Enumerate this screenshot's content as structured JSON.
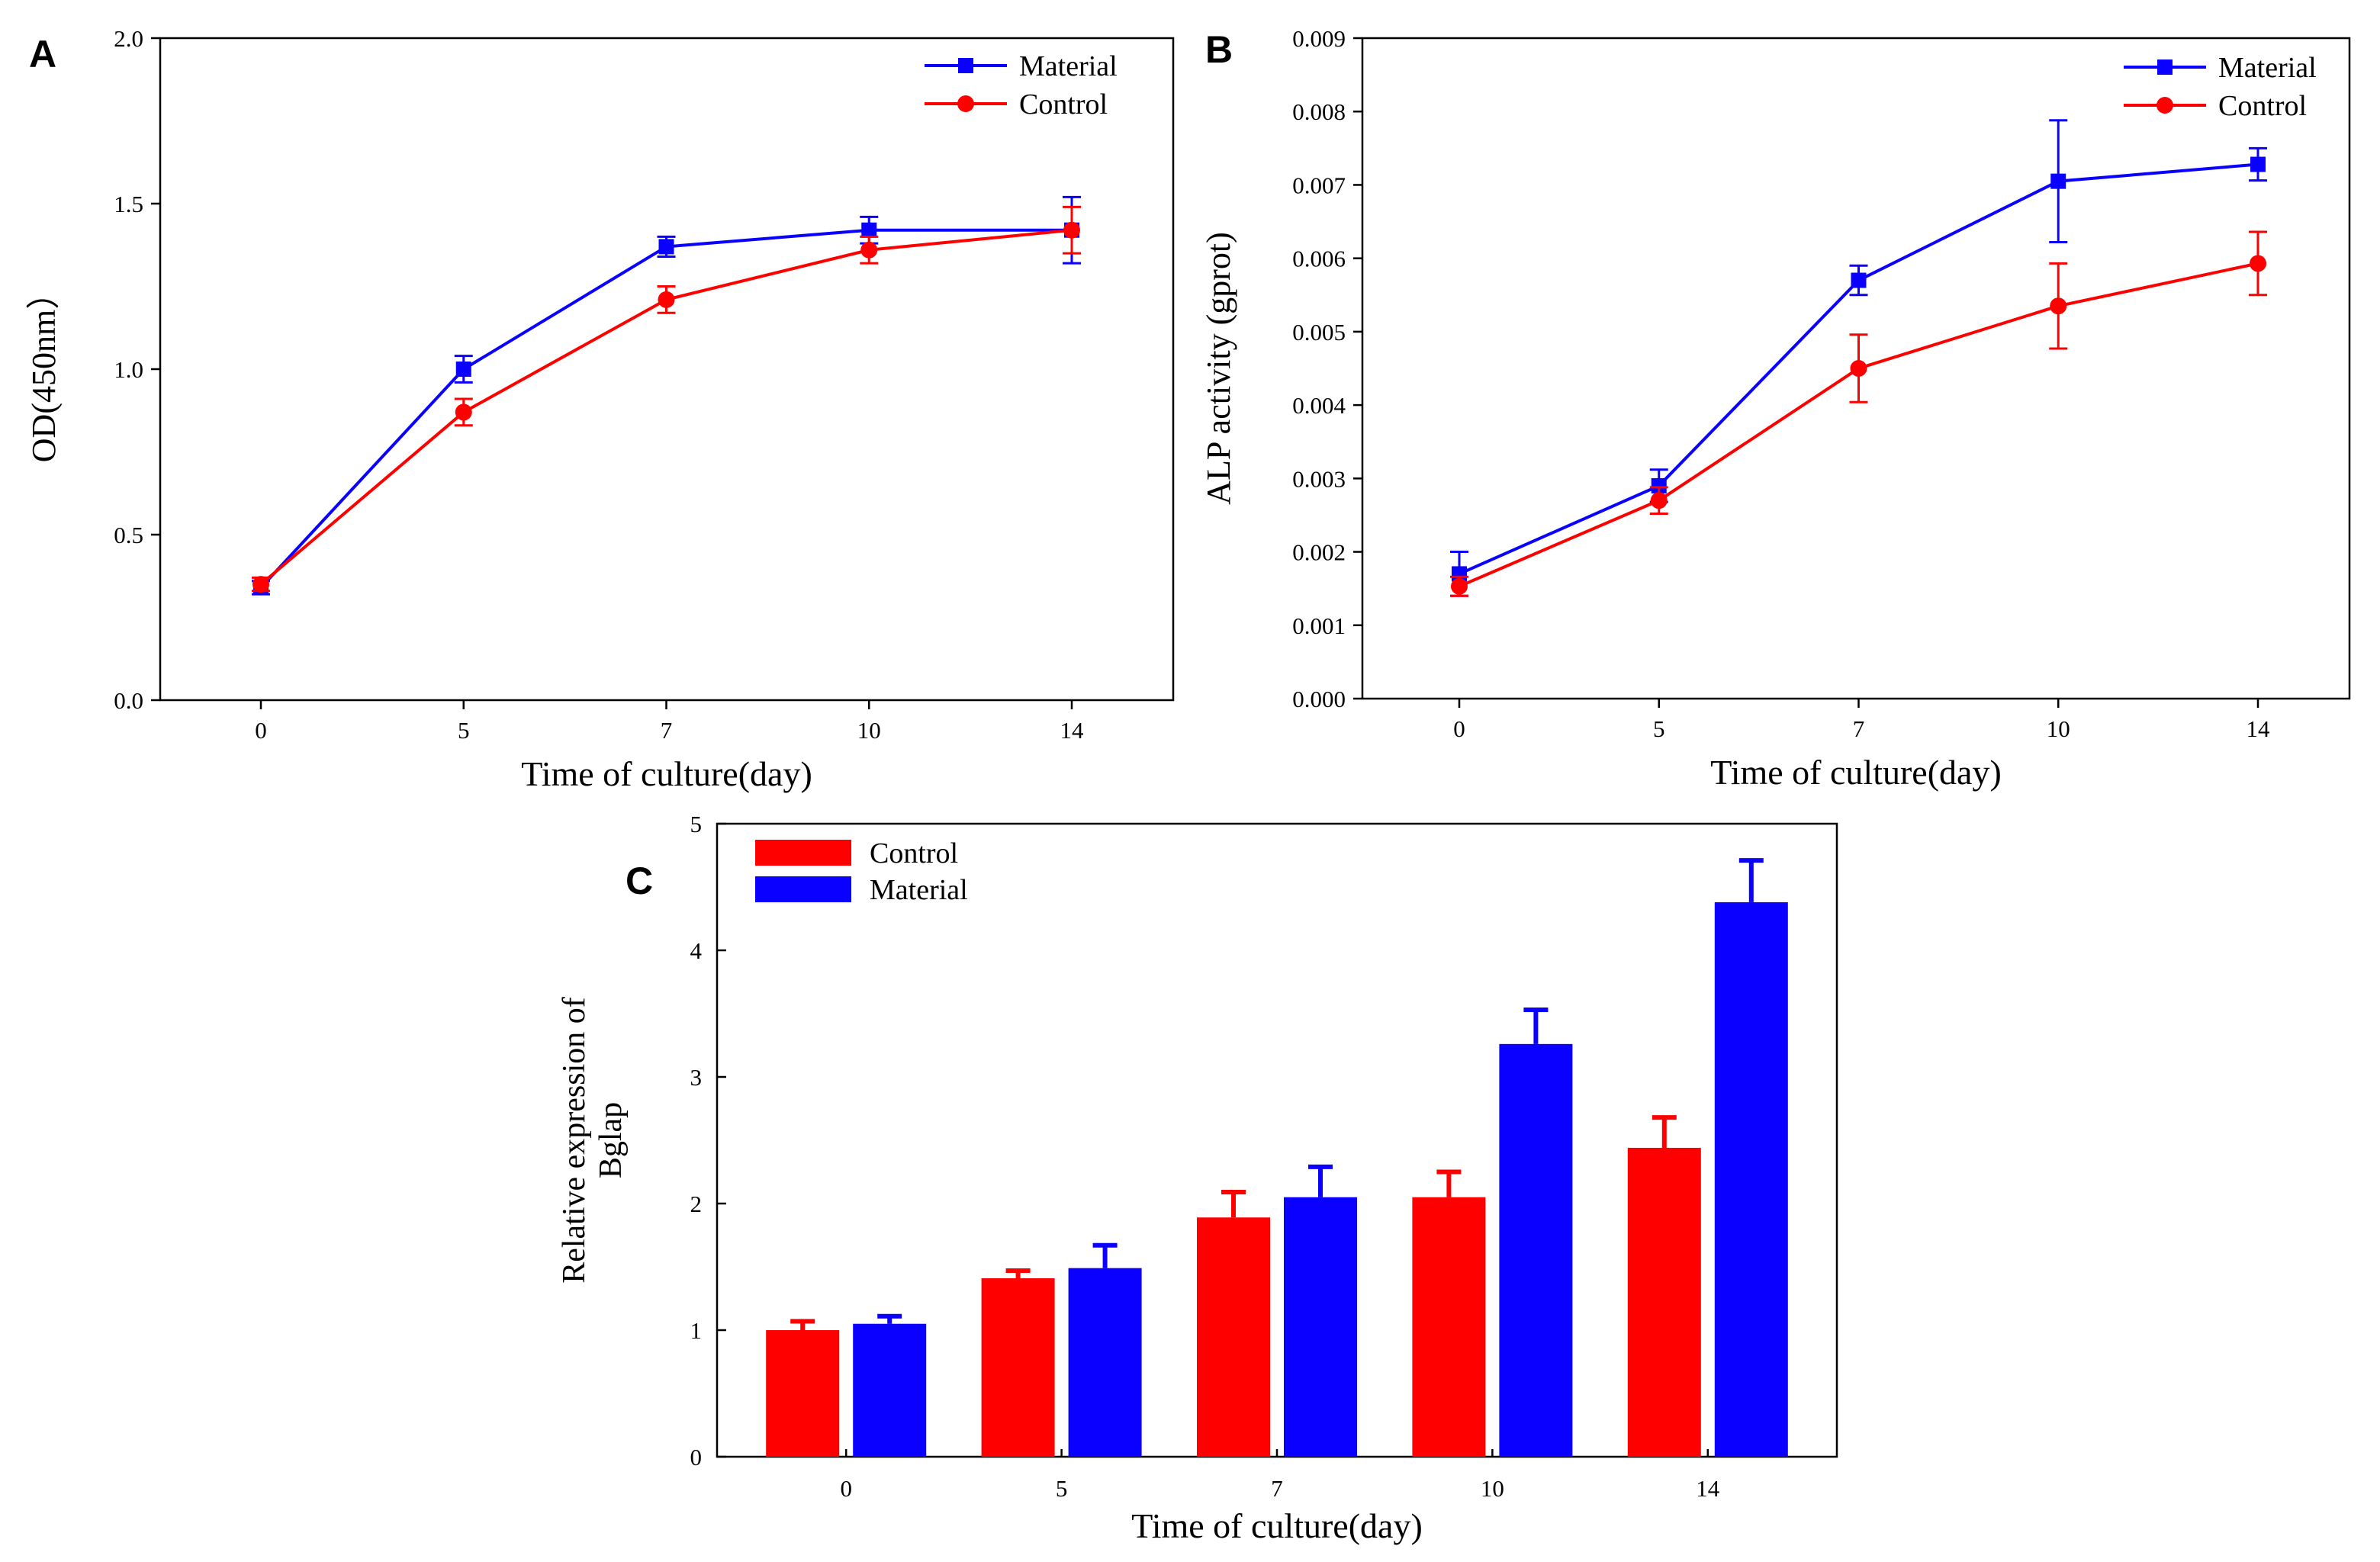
{
  "colors": {
    "material": "#0a00ff",
    "control": "#ff0000",
    "axis": "#000000"
  },
  "chart_data": [
    {
      "panel": "A",
      "type": "line",
      "xlabel": "Time of culture(day)",
      "ylabel": "OD(450nm）",
      "categories": [
        "0",
        "5",
        "7",
        "10",
        "14"
      ],
      "ylim": [
        0.0,
        2.0
      ],
      "yticks": [
        "0.0",
        "0.5",
        "1.0",
        "1.5",
        "2.0"
      ],
      "legend_position": "top-right",
      "series": [
        {
          "name": "Material",
          "color_key": "material",
          "marker": "square",
          "values": [
            0.34,
            1.0,
            1.37,
            1.42,
            1.42
          ],
          "errors": [
            0.02,
            0.04,
            0.03,
            0.04,
            0.1
          ]
        },
        {
          "name": "Control",
          "color_key": "control",
          "marker": "circle",
          "values": [
            0.35,
            0.87,
            1.21,
            1.36,
            1.42
          ],
          "errors": [
            0.02,
            0.04,
            0.04,
            0.04,
            0.07
          ]
        }
      ]
    },
    {
      "panel": "B",
      "type": "line",
      "xlabel": "Time of culture(day)",
      "ylabel": "ALP activity (gprot)",
      "categories": [
        "0",
        "5",
        "7",
        "10",
        "14"
      ],
      "ylim": [
        0.0,
        0.009
      ],
      "yticks": [
        "0.000",
        "0.001",
        "0.002",
        "0.003",
        "0.004",
        "0.005",
        "0.006",
        "0.007",
        "0.008",
        "0.009"
      ],
      "legend_position": "top-right",
      "series": [
        {
          "name": "Material",
          "color_key": "material",
          "marker": "square",
          "values": [
            0.0017,
            0.0029,
            0.0057,
            0.00705,
            0.00728
          ],
          "errors": [
            0.0003,
            0.00022,
            0.0002,
            0.00083,
            0.00022
          ]
        },
        {
          "name": "Control",
          "color_key": "control",
          "marker": "circle",
          "values": [
            0.00153,
            0.0027,
            0.0045,
            0.00535,
            0.00593
          ],
          "errors": [
            0.00013,
            0.00018,
            0.00046,
            0.00058,
            0.00043
          ]
        }
      ]
    },
    {
      "panel": "C",
      "type": "bar",
      "xlabel": "Time of culture(day)",
      "ylabel_lines": [
        "Relative expression of",
        "Bglap"
      ],
      "categories": [
        "0",
        "5",
        "7",
        "10",
        "14"
      ],
      "ylim": [
        0,
        5
      ],
      "yticks": [
        "0",
        "1",
        "2",
        "3",
        "4",
        "5"
      ],
      "legend_position": "top-left",
      "series": [
        {
          "name": "Control",
          "color_key": "control",
          "values": [
            1.0,
            1.41,
            1.89,
            2.05,
            2.44
          ],
          "errors": [
            0.07,
            0.06,
            0.2,
            0.2,
            0.24
          ]
        },
        {
          "name": "Material",
          "color_key": "material",
          "values": [
            1.05,
            1.49,
            2.05,
            3.26,
            4.38
          ],
          "errors": [
            0.06,
            0.18,
            0.24,
            0.27,
            0.33
          ]
        }
      ]
    }
  ]
}
